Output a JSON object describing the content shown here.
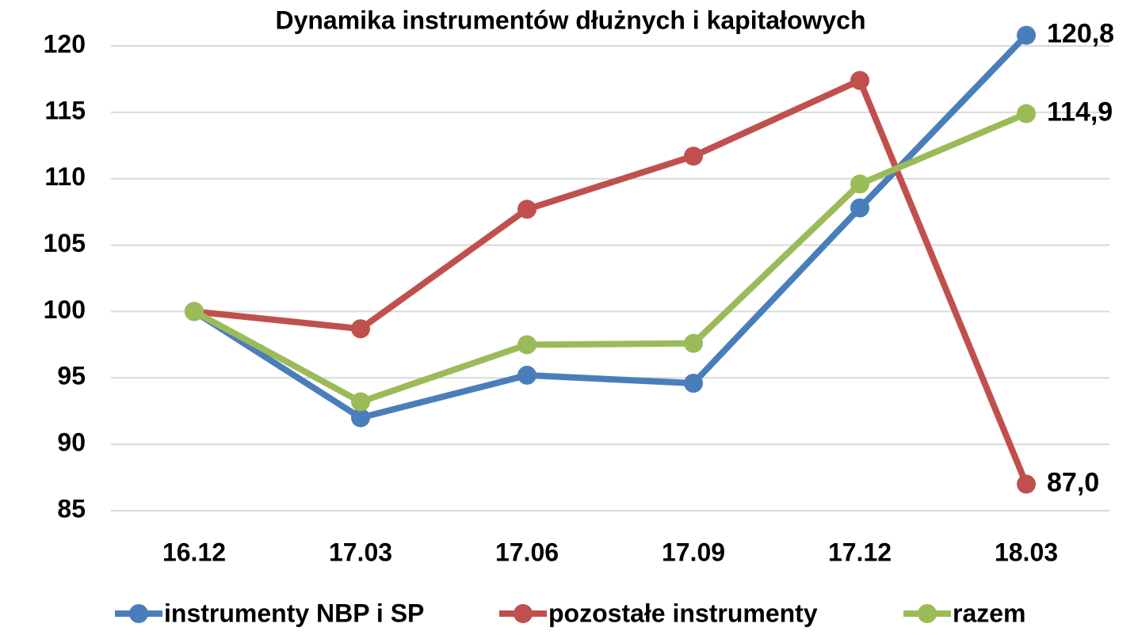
{
  "chart_data": {
    "type": "line",
    "title": "Dynamika instrumentów dłużnych i kapitałowych",
    "categories": [
      "16.12",
      "17.03",
      "17.06",
      "17.09",
      "17.12",
      "18.03"
    ],
    "series": [
      {
        "name": "instrumenty NBP i SP",
        "color": "#4a7ebb",
        "values": [
          100,
          92.0,
          95.2,
          94.6,
          107.8,
          120.8
        ],
        "value_labels": [
          null,
          null,
          null,
          null,
          null,
          "120,8"
        ]
      },
      {
        "name": "pozostałe instrumenty",
        "color": "#c0504d",
        "values": [
          100,
          98.7,
          107.7,
          111.7,
          117.4,
          87.0
        ],
        "value_labels": [
          null,
          null,
          null,
          null,
          null,
          "87,0"
        ]
      },
      {
        "name": "razem",
        "color": "#9bbb59",
        "values": [
          100,
          93.2,
          97.5,
          97.6,
          109.6,
          114.9
        ],
        "value_labels": [
          null,
          null,
          null,
          null,
          null,
          "114,9"
        ]
      }
    ],
    "ylim": [
      85,
      120
    ],
    "yticks": [
      85,
      90,
      95,
      100,
      105,
      110,
      115,
      120
    ],
    "grid": true,
    "legend": "bottom"
  }
}
